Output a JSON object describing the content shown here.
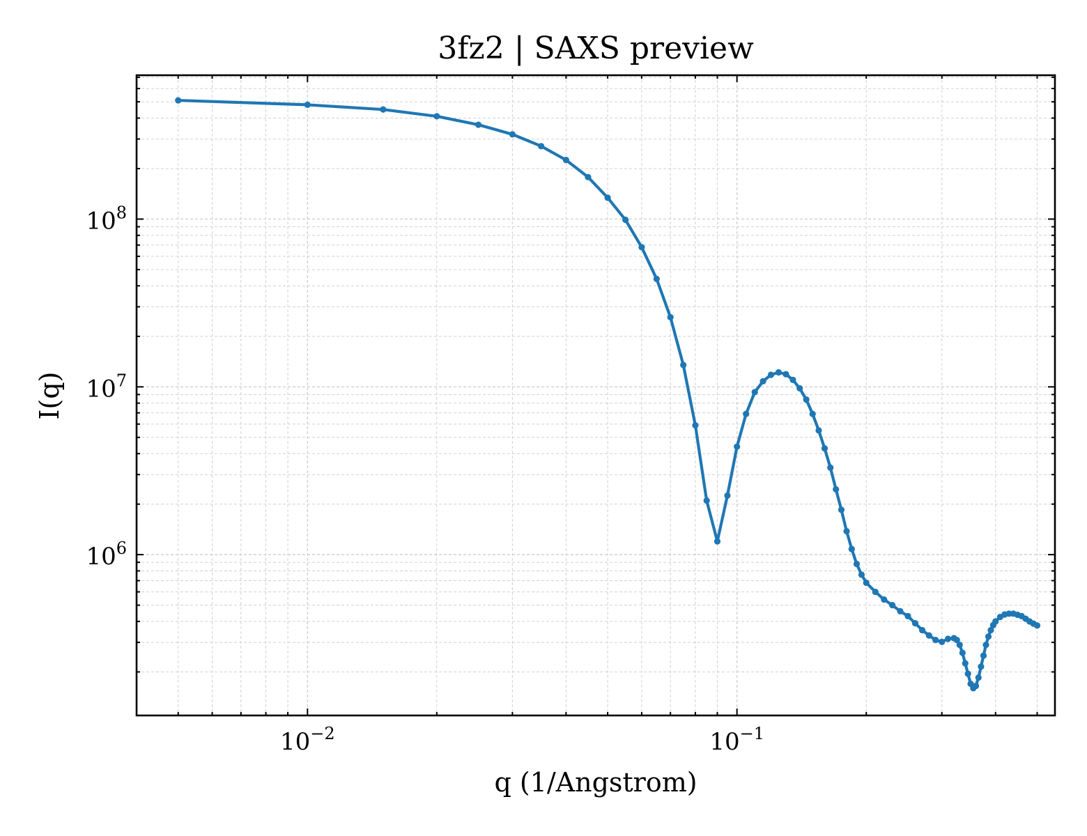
{
  "chart_data": {
    "type": "line",
    "title": "3fz2 | SAXS preview",
    "xlabel": "q (1/Angstrom)",
    "ylabel": "I(q)",
    "xscale": "log",
    "yscale": "log",
    "xlim": [
      0.004,
      0.55
    ],
    "ylim": [
      110000,
      720000000
    ],
    "grid": true,
    "colors": {
      "line": "#1f77b4",
      "grid": "#d0d0d0",
      "axis": "#000000"
    },
    "x_ticks": [
      {
        "value": 0.01,
        "base": "10",
        "exp": "−2"
      },
      {
        "value": 0.1,
        "base": "10",
        "exp": "−1"
      }
    ],
    "y_ticks": [
      {
        "value": 1000000,
        "base": "10",
        "exp": "6"
      },
      {
        "value": 10000000,
        "base": "10",
        "exp": "7"
      },
      {
        "value": 100000000,
        "base": "10",
        "exp": "8"
      }
    ],
    "series": [
      {
        "marker": "dot",
        "x": [
          0.005,
          0.01,
          0.015,
          0.02,
          0.025,
          0.03,
          0.035,
          0.04,
          0.045,
          0.05,
          0.055,
          0.06,
          0.065,
          0.07,
          0.075,
          0.08,
          0.085,
          0.09,
          0.095,
          0.1,
          0.105,
          0.11,
          0.115,
          0.12,
          0.125,
          0.13,
          0.135,
          0.14,
          0.145,
          0.15,
          0.155,
          0.16,
          0.165,
          0.17,
          0.175,
          0.18,
          0.185,
          0.19,
          0.195,
          0.2,
          0.21,
          0.22,
          0.23,
          0.24,
          0.25,
          0.26,
          0.27,
          0.28,
          0.29,
          0.3,
          0.31,
          0.32,
          0.325,
          0.33,
          0.335,
          0.34,
          0.345,
          0.35,
          0.355,
          0.36,
          0.365,
          0.37,
          0.375,
          0.38,
          0.385,
          0.39,
          0.395,
          0.4,
          0.41,
          0.42,
          0.43,
          0.44,
          0.45,
          0.46,
          0.47,
          0.48,
          0.49,
          0.5
        ],
        "y": [
          510000000,
          480000000,
          450000000,
          410000000,
          365000000,
          320000000,
          272000000,
          225000000,
          178000000,
          134000000,
          99000000,
          68000000,
          44000000,
          26000000,
          13500000,
          5900000,
          2100000,
          1200000,
          2250000,
          4400000,
          6900000,
          9300000,
          10800000,
          11800000,
          12200000,
          11900000,
          11000000,
          9800000,
          8400000,
          6900000,
          5500000,
          4300000,
          3300000,
          2450000,
          1850000,
          1380000,
          1080000,
          880000,
          760000,
          680000,
          600000,
          540000,
          500000,
          460000,
          430000,
          390000,
          355000,
          330000,
          310000,
          302000,
          315000,
          318000,
          310000,
          290000,
          260000,
          225000,
          195000,
          170000,
          160000,
          165000,
          185000,
          215000,
          250000,
          290000,
          325000,
          355000,
          380000,
          400000,
          425000,
          440000,
          445000,
          445000,
          438000,
          430000,
          415000,
          400000,
          388000,
          378000
        ]
      }
    ]
  }
}
